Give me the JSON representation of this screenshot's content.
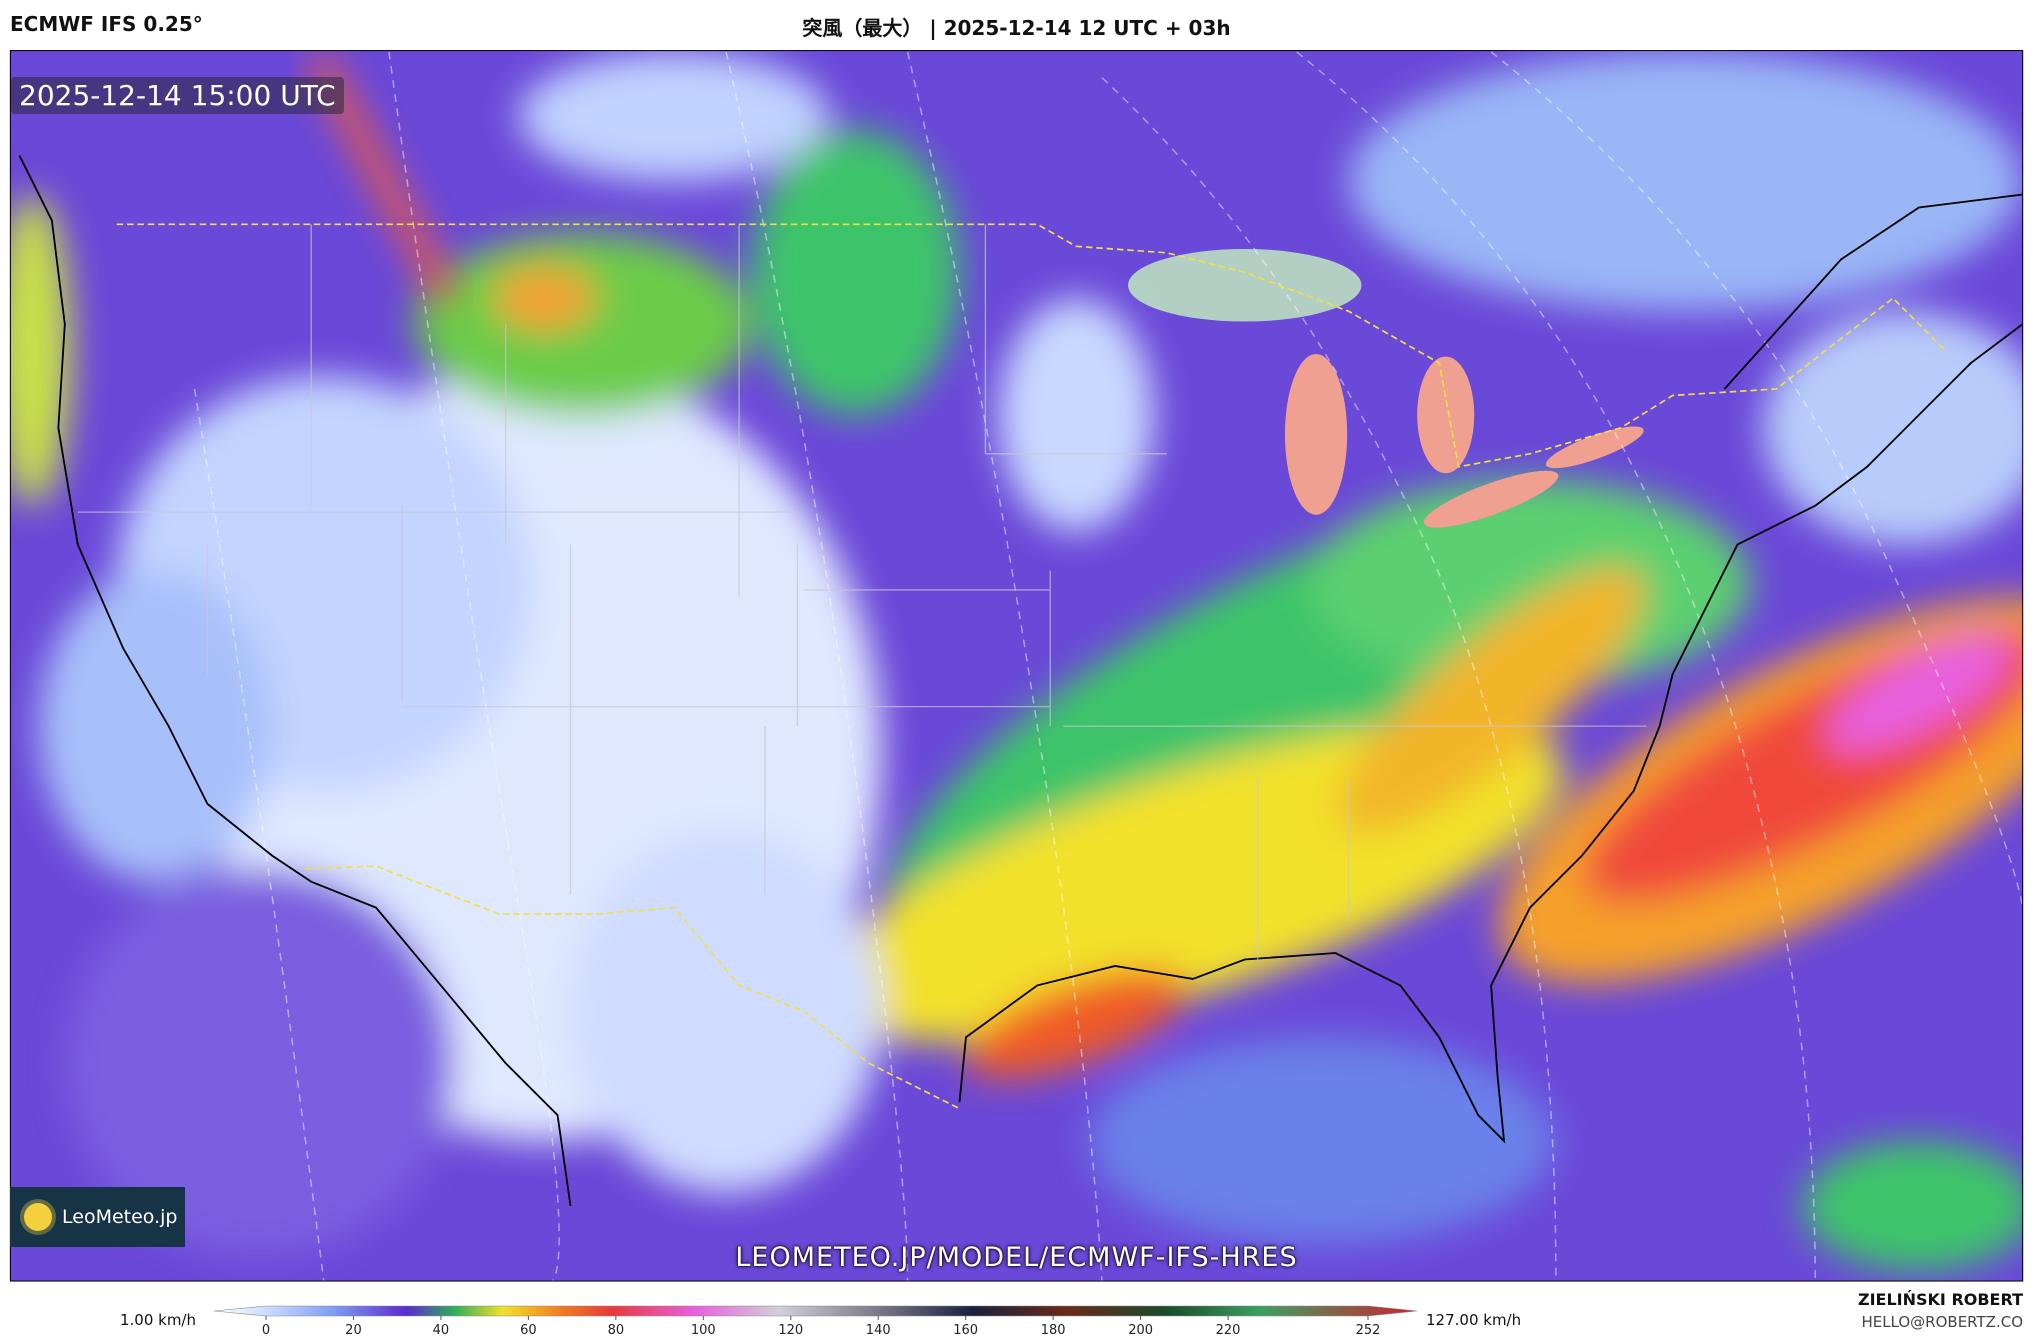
{
  "header": {
    "model": "ECMWF IFS 0.25°",
    "title": "突風（最大） | 2025-12-14 12 UTC + 03h"
  },
  "map": {
    "timestamp": "2025-12-14 15:00 UTC",
    "logo": "LeoMeteo.jp",
    "url": "LEOMETEO.JP/MODEL/ECMWF-IFS-HRES"
  },
  "colorbar": {
    "min_label": "1.00 km/h",
    "max_label": "127.00 km/h",
    "ticks": [
      0,
      20,
      40,
      60,
      80,
      100,
      120,
      140,
      160,
      180,
      200,
      220,
      252
    ]
  },
  "credits": {
    "author": "ZIELIŃSKI ROBERT",
    "email": "HELLO@ROBERTZ.CO"
  }
}
